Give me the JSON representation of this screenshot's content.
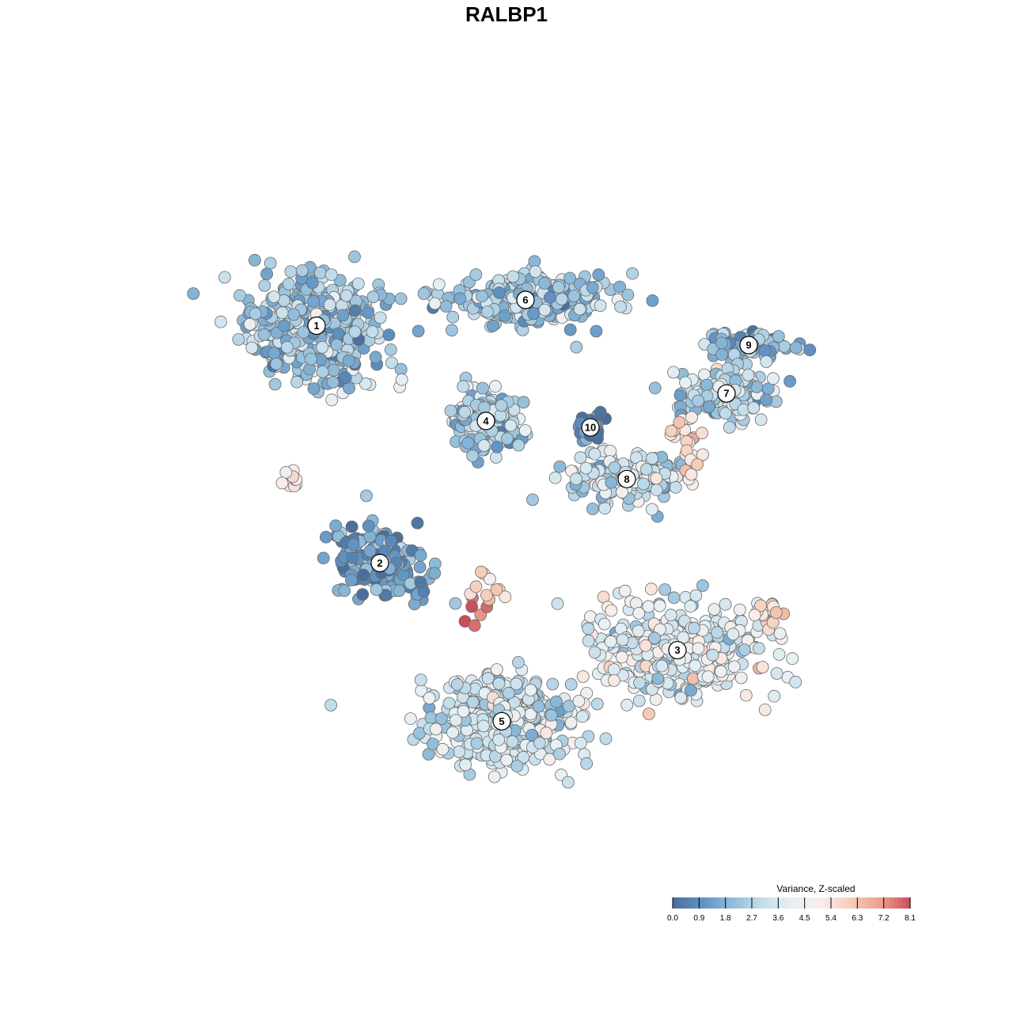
{
  "chart_data": {
    "type": "scatter",
    "title": "RALBP1",
    "xlabel": "",
    "ylabel": "",
    "grid": false,
    "legend": {
      "title": "Variance, Z-scaled",
      "placement": "bottom-right",
      "range": [
        0,
        8.1
      ],
      "ticks": [
        "0.0",
        "0.9",
        "1.8",
        "2.7",
        "3.6",
        "4.5",
        "5.4",
        "6.3",
        "7.2",
        "8.1"
      ],
      "colors": [
        "#4a6f9a",
        "#5f93c4",
        "#8fbcda",
        "#c3ddea",
        "#e7f0f4",
        "#f7eeea",
        "#f6cdb9",
        "#ec9f8c",
        "#c94f5b"
      ]
    },
    "clusters": [
      {
        "label": "1",
        "x": -12.0,
        "y": 11.2,
        "spread": [
          4.2,
          3.2
        ],
        "n": 460,
        "mean": 2.3
      },
      {
        "label": "6",
        "x": 1.2,
        "y": 12.8,
        "spread": [
          4.8,
          1.6
        ],
        "n": 320,
        "mean": 2.6
      },
      {
        "label": "4",
        "x": -1.3,
        "y": 5.3,
        "spread": [
          1.9,
          1.7
        ],
        "n": 230,
        "mean": 2.4
      },
      {
        "label": "10",
        "x": 5.3,
        "y": 4.9,
        "spread": [
          0.8,
          0.9
        ],
        "n": 50,
        "mean": 0.6
      },
      {
        "label": "9",
        "x": 15.3,
        "y": 10.0,
        "spread": [
          2.6,
          0.9
        ],
        "n": 110,
        "mean": 1.9
      },
      {
        "label": "7",
        "x": 13.9,
        "y": 7.0,
        "spread": [
          3.2,
          1.5
        ],
        "n": 150,
        "mean": 3.0
      },
      {
        "label": "8",
        "x": 7.6,
        "y": 1.7,
        "spread": [
          3.5,
          1.5
        ],
        "n": 180,
        "mean": 3.2
      },
      {
        "label": "2",
        "x": -8.0,
        "y": -3.5,
        "spread": [
          3.0,
          2.2
        ],
        "n": 200,
        "mean": 1.3
      },
      {
        "label": "3",
        "x": 10.8,
        "y": -8.9,
        "spread": [
          5.2,
          2.9
        ],
        "n": 380,
        "mean": 3.9
      },
      {
        "label": "5",
        "x": -0.3,
        "y": -13.3,
        "spread": [
          4.5,
          2.6
        ],
        "n": 420,
        "mean": 3.3
      }
    ],
    "hotspots": [
      {
        "near": "2",
        "x": -1.9,
        "y": -6.6,
        "n": 6,
        "value": 8.0
      },
      {
        "near": "2",
        "x": -1.3,
        "y": -4.8,
        "n": 10,
        "value": 5.8
      },
      {
        "near": "3",
        "x": 16.5,
        "y": -6.5,
        "n": 14,
        "value": 5.8
      },
      {
        "near": "7",
        "x": 11.5,
        "y": 4.6,
        "n": 14,
        "value": 5.6
      },
      {
        "near": "1",
        "x": -13.2,
        "y": 1.7,
        "n": 10,
        "value": 4.8
      },
      {
        "near": "8",
        "x": 11.5,
        "y": 2.6,
        "n": 10,
        "value": 5.2
      }
    ]
  }
}
